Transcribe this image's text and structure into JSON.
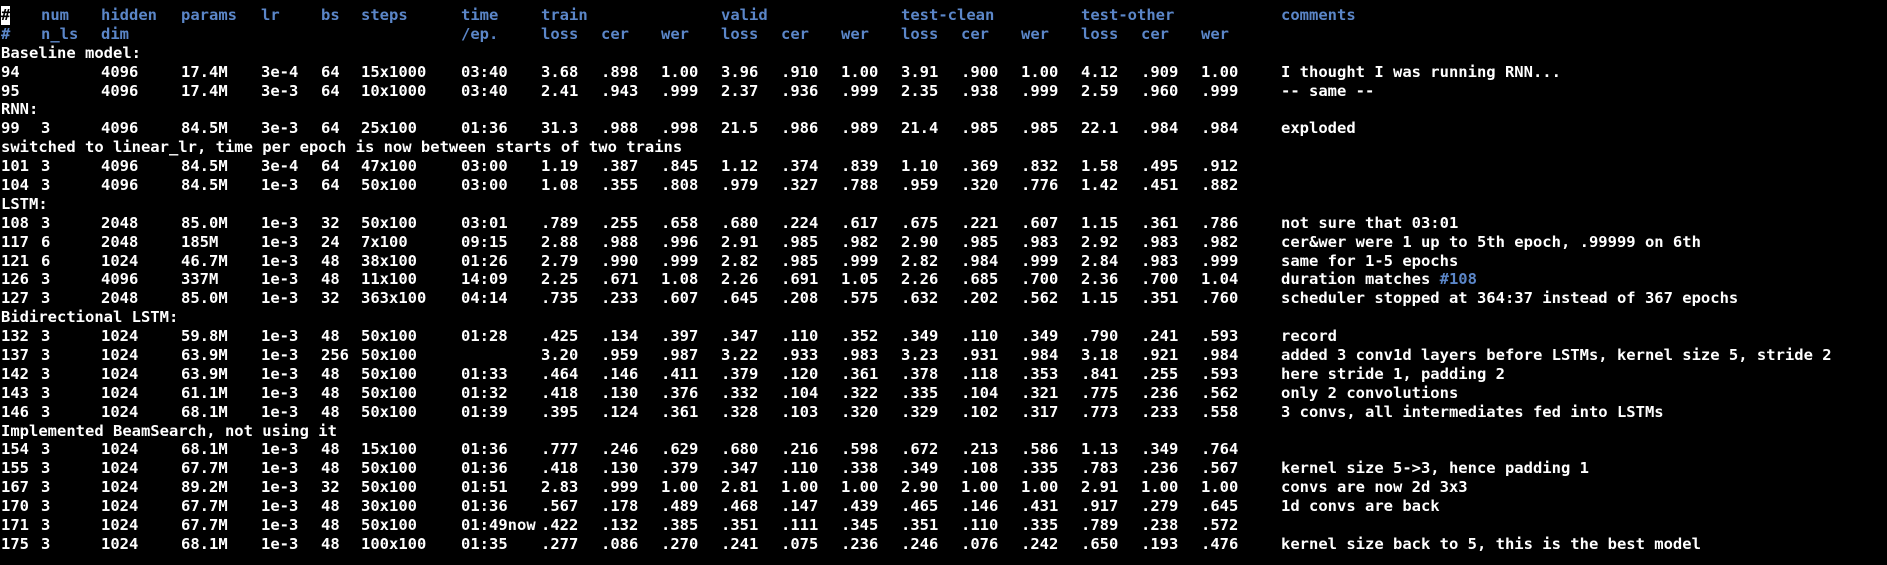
{
  "colors": {
    "background": "#000000",
    "text": "#ffffff",
    "header": "#5b86c8",
    "link": "#5b86c8"
  },
  "header1": {
    "hash": "#",
    "num": "num",
    "hidden": "hidden",
    "params": "params",
    "lr": "lr",
    "bs": "bs",
    "steps": "steps",
    "time": "time",
    "train": "train",
    "valid": "valid",
    "test_clean": "test-clean",
    "test_other": "test-other",
    "comments": "comments"
  },
  "header2": {
    "hash": "#",
    "n_ls": "n_ls",
    "dim": "dim",
    "ep": "/ep.",
    "train_loss": "loss",
    "train_cer": "cer",
    "train_wer": "wer",
    "valid_loss": "loss",
    "valid_cer": "cer",
    "valid_wer": "wer",
    "tc_loss": "loss",
    "tc_cer": "cer",
    "tc_wer": "wer",
    "to_loss": "loss",
    "to_cer": "cer",
    "to_wer": "wer"
  },
  "rows": [
    {
      "type": "section",
      "text": "Baseline model:"
    },
    {
      "type": "data",
      "num": "94",
      "nls": "",
      "hidden": "4096",
      "params": "17.4M",
      "lr": "3e-4",
      "bs": "64",
      "steps": "15x1000",
      "time": "03:40",
      "tl": "3.68",
      "tc": ".898",
      "tw": "1.00",
      "vl": "3.96",
      "vc": ".910",
      "vw": "1.00",
      "cl": "3.91",
      "cc": ".900",
      "cw": "1.00",
      "ol": "4.12",
      "oc": ".909",
      "ow": "1.00",
      "comment": "I thought I was running RNN..."
    },
    {
      "type": "data",
      "num": "95",
      "nls": "",
      "hidden": "4096",
      "params": "17.4M",
      "lr": "3e-3",
      "bs": "64",
      "steps": "10x1000",
      "time": "03:40",
      "tl": "2.41",
      "tc": ".943",
      "tw": ".999",
      "vl": "2.37",
      "vc": ".936",
      "vw": ".999",
      "cl": "2.35",
      "cc": ".938",
      "cw": ".999",
      "ol": "2.59",
      "oc": ".960",
      "ow": ".999",
      "comment": "-- same --"
    },
    {
      "type": "section",
      "text": "RNN:"
    },
    {
      "type": "data",
      "num": "99",
      "nls": "3",
      "hidden": "4096",
      "params": "84.5M",
      "lr": "3e-3",
      "bs": "64",
      "steps": "25x100",
      "time": "01:36",
      "tl": "31.3",
      "tc": ".988",
      "tw": ".998",
      "vl": "21.5",
      "vc": ".986",
      "vw": ".989",
      "cl": "21.4",
      "cc": ".985",
      "cw": ".985",
      "ol": "22.1",
      "oc": ".984",
      "ow": ".984",
      "comment": "exploded"
    },
    {
      "type": "section",
      "text": "switched to linear_lr, time per epoch is now between starts of two trains"
    },
    {
      "type": "data",
      "num": "101",
      "nls": "3",
      "hidden": "4096",
      "params": "84.5M",
      "lr": "3e-4",
      "bs": "64",
      "steps": "47x100",
      "time": "03:00",
      "tl": "1.19",
      "tc": ".387",
      "tw": ".845",
      "vl": "1.12",
      "vc": ".374",
      "vw": ".839",
      "cl": "1.10",
      "cc": ".369",
      "cw": ".832",
      "ol": "1.58",
      "oc": ".495",
      "ow": ".912",
      "comment": ""
    },
    {
      "type": "data",
      "num": "104",
      "nls": "3",
      "hidden": "4096",
      "params": "84.5M",
      "lr": "1e-3",
      "bs": "64",
      "steps": "50x100",
      "time": "03:00",
      "tl": "1.08",
      "tc": ".355",
      "tw": ".808",
      "vl": ".979",
      "vc": ".327",
      "vw": ".788",
      "cl": ".959",
      "cc": ".320",
      "cw": ".776",
      "ol": "1.42",
      "oc": ".451",
      "ow": ".882",
      "comment": ""
    },
    {
      "type": "section",
      "text": "LSTM:"
    },
    {
      "type": "data",
      "num": "108",
      "nls": "3",
      "hidden": "2048",
      "params": "85.0M",
      "lr": "1e-3",
      "bs": "32",
      "steps": "50x100",
      "time": "03:01",
      "tl": ".789",
      "tc": ".255",
      "tw": ".658",
      "vl": ".680",
      "vc": ".224",
      "vw": ".617",
      "cl": ".675",
      "cc": ".221",
      "cw": ".607",
      "ol": "1.15",
      "oc": ".361",
      "ow": ".786",
      "comment": "not sure that 03:01"
    },
    {
      "type": "data",
      "num": "117",
      "nls": "6",
      "hidden": "2048",
      "params": "185M",
      "lr": "1e-3",
      "bs": "24",
      "steps": "7x100",
      "time": "09:15",
      "tl": "2.88",
      "tc": ".988",
      "tw": ".996",
      "vl": "2.91",
      "vc": ".985",
      "vw": ".982",
      "cl": "2.90",
      "cc": ".985",
      "cw": ".983",
      "ol": "2.92",
      "oc": ".983",
      "ow": ".982",
      "comment": "cer&wer were 1 up to 5th epoch, .99999 on 6th"
    },
    {
      "type": "data",
      "num": "121",
      "nls": "6",
      "hidden": "1024",
      "params": "46.7M",
      "lr": "1e-3",
      "bs": "48",
      "steps": "38x100",
      "time": "01:26",
      "tl": "2.79",
      "tc": ".990",
      "tw": ".999",
      "vl": "2.82",
      "vc": ".985",
      "vw": ".999",
      "cl": "2.82",
      "cc": ".984",
      "cw": ".999",
      "ol": "2.84",
      "oc": ".983",
      "ow": ".999",
      "comment": "same for 1-5 epochs"
    },
    {
      "type": "data",
      "num": "126",
      "nls": "3",
      "hidden": "4096",
      "params": "337M",
      "lr": "1e-3",
      "bs": "48",
      "steps": "11x100",
      "time": "14:09",
      "tl": "2.25",
      "tc": ".671",
      "tw": "1.08",
      "vl": "2.26",
      "vc": ".691",
      "vw": "1.05",
      "cl": "2.26",
      "cc": ".685",
      "cw": ".700",
      "ol": "2.36",
      "oc": ".700",
      "ow": "1.04",
      "comment": "duration matches ",
      "comment_ref": "#108"
    },
    {
      "type": "data",
      "num": "127",
      "nls": "3",
      "hidden": "2048",
      "params": "85.0M",
      "lr": "1e-3",
      "bs": "32",
      "steps": "363x100",
      "time": "04:14",
      "tl": ".735",
      "tc": ".233",
      "tw": ".607",
      "vl": ".645",
      "vc": ".208",
      "vw": ".575",
      "cl": ".632",
      "cc": ".202",
      "cw": ".562",
      "ol": "1.15",
      "oc": ".351",
      "ow": ".760",
      "comment": "scheduler stopped at 364:37 instead of 367 epochs"
    },
    {
      "type": "section",
      "text": "Bidirectional LSTM:"
    },
    {
      "type": "data",
      "num": "132",
      "nls": "3",
      "hidden": "1024",
      "params": "59.8M",
      "lr": "1e-3",
      "bs": "48",
      "steps": "50x100",
      "time": "01:28",
      "tl": ".425",
      "tc": ".134",
      "tw": ".397",
      "vl": ".347",
      "vc": ".110",
      "vw": ".352",
      "cl": ".349",
      "cc": ".110",
      "cw": ".349",
      "ol": ".790",
      "oc": ".241",
      "ow": ".593",
      "comment": "record"
    },
    {
      "type": "data",
      "num": "137",
      "nls": "3",
      "hidden": "1024",
      "params": "63.9M",
      "lr": "1e-3",
      "bs": "256",
      "steps": "50x100",
      "time": "",
      "tl": "3.20",
      "tc": ".959",
      "tw": ".987",
      "vl": "3.22",
      "vc": ".933",
      "vw": ".983",
      "cl": "3.23",
      "cc": ".931",
      "cw": ".984",
      "ol": "3.18",
      "oc": ".921",
      "ow": ".984",
      "comment": "added 3 conv1d layers before LSTMs, kernel size 5, stride 2"
    },
    {
      "type": "data",
      "num": "142",
      "nls": "3",
      "hidden": "1024",
      "params": "63.9M",
      "lr": "1e-3",
      "bs": "48",
      "steps": "50x100",
      "time": "01:33",
      "tl": ".464",
      "tc": ".146",
      "tw": ".411",
      "vl": ".379",
      "vc": ".120",
      "vw": ".361",
      "cl": ".378",
      "cc": ".118",
      "cw": ".353",
      "ol": ".841",
      "oc": ".255",
      "ow": ".593",
      "comment": "here stride 1, padding 2"
    },
    {
      "type": "data",
      "num": "143",
      "nls": "3",
      "hidden": "1024",
      "params": "61.1M",
      "lr": "1e-3",
      "bs": "48",
      "steps": "50x100",
      "time": "01:32",
      "tl": ".418",
      "tc": ".130",
      "tw": ".376",
      "vl": ".332",
      "vc": ".104",
      "vw": ".322",
      "cl": ".335",
      "cc": ".104",
      "cw": ".321",
      "ol": ".775",
      "oc": ".236",
      "ow": ".562",
      "comment": "only 2 convolutions"
    },
    {
      "type": "data",
      "num": "146",
      "nls": "3",
      "hidden": "1024",
      "params": "68.1M",
      "lr": "1e-3",
      "bs": "48",
      "steps": "50x100",
      "time": "01:39",
      "tl": ".395",
      "tc": ".124",
      "tw": ".361",
      "vl": ".328",
      "vc": ".103",
      "vw": ".320",
      "cl": ".329",
      "cc": ".102",
      "cw": ".317",
      "ol": ".773",
      "oc": ".233",
      "ow": ".558",
      "comment": "3 convs, all intermediates fed into LSTMs"
    },
    {
      "type": "section",
      "text": "Implemented BeamSearch, not using it"
    },
    {
      "type": "data",
      "num": "154",
      "nls": "3",
      "hidden": "1024",
      "params": "68.1M",
      "lr": "1e-3",
      "bs": "48",
      "steps": "15x100",
      "time": "01:36",
      "tl": ".777",
      "tc": ".246",
      "tw": ".629",
      "vl": ".680",
      "vc": ".216",
      "vw": ".598",
      "cl": ".672",
      "cc": ".213",
      "cw": ".586",
      "ol": "1.13",
      "oc": ".349",
      "ow": ".764",
      "comment": ""
    },
    {
      "type": "data",
      "num": "155",
      "nls": "3",
      "hidden": "1024",
      "params": "67.7M",
      "lr": "1e-3",
      "bs": "48",
      "steps": "50x100",
      "time": "01:36",
      "tl": ".418",
      "tc": ".130",
      "tw": ".379",
      "vl": ".347",
      "vc": ".110",
      "vw": ".338",
      "cl": ".349",
      "cc": ".108",
      "cw": ".335",
      "ol": ".783",
      "oc": ".236",
      "ow": ".567",
      "comment": "kernel size 5->3, hence padding 1"
    },
    {
      "type": "data",
      "num": "167",
      "nls": "3",
      "hidden": "1024",
      "params": "89.2M",
      "lr": "1e-3",
      "bs": "32",
      "steps": "50x100",
      "time": "01:51",
      "tl": "2.83",
      "tc": ".999",
      "tw": "1.00",
      "vl": "2.81",
      "vc": "1.00",
      "vw": "1.00",
      "cl": "2.90",
      "cc": "1.00",
      "cw": "1.00",
      "ol": "2.91",
      "oc": "1.00",
      "ow": "1.00",
      "comment": "convs are now 2d 3x3"
    },
    {
      "type": "data",
      "num": "170",
      "nls": "3",
      "hidden": "1024",
      "params": "67.7M",
      "lr": "1e-3",
      "bs": "48",
      "steps": "30x100",
      "time": "01:36",
      "tl": ".567",
      "tc": ".178",
      "tw": ".489",
      "vl": ".468",
      "vc": ".147",
      "vw": ".439",
      "cl": ".465",
      "cc": ".146",
      "cw": ".431",
      "ol": ".917",
      "oc": ".279",
      "ow": ".645",
      "comment": "1d convs are back"
    },
    {
      "type": "data",
      "num": "171",
      "nls": "3",
      "hidden": "1024",
      "params": "67.7M",
      "lr": "1e-3",
      "bs": "48",
      "steps": "50x100",
      "time": "01:49now",
      "tl": ".422",
      "tc": ".132",
      "tw": ".385",
      "vl": ".351",
      "vc": ".111",
      "vw": ".345",
      "cl": ".351",
      "cc": ".110",
      "cw": ".335",
      "ol": ".789",
      "oc": ".238",
      "ow": ".572",
      "comment": ""
    },
    {
      "type": "data",
      "num": "175",
      "nls": "3",
      "hidden": "1024",
      "params": "68.1M",
      "lr": "1e-3",
      "bs": "48",
      "steps": "100x100",
      "time": "01:35",
      "tl": ".277",
      "tc": ".086",
      "tw": ".270",
      "vl": ".241",
      "vc": ".075",
      "vw": ".236",
      "cl": ".246",
      "cc": ".076",
      "cw": ".242",
      "ol": ".650",
      "oc": ".193",
      "ow": ".476",
      "comment": "kernel size back to 5, this is the best model"
    }
  ]
}
